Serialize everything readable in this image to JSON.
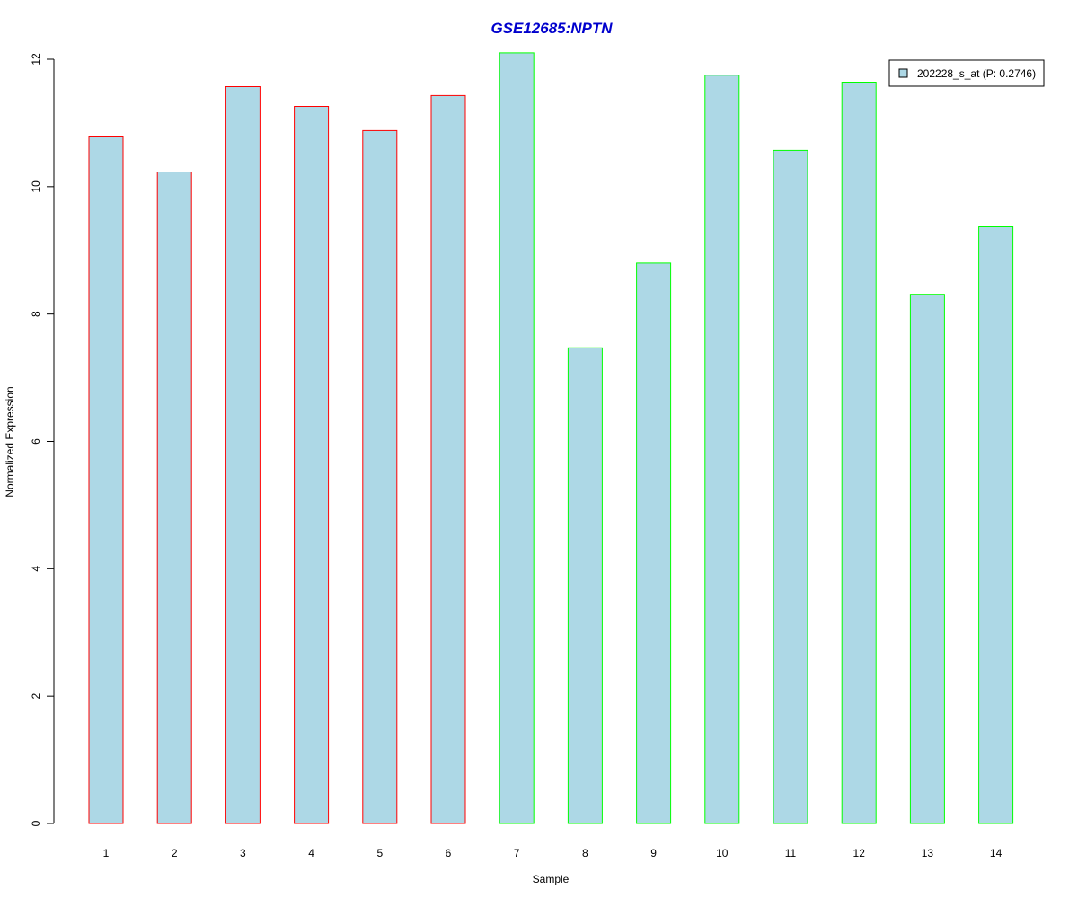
{
  "chart_data": {
    "type": "bar",
    "title": "GSE12685:NPTN",
    "xlabel": "Sample",
    "ylabel": "Normalized Expression",
    "categories": [
      "1",
      "2",
      "3",
      "4",
      "5",
      "6",
      "7",
      "8",
      "9",
      "10",
      "11",
      "12",
      "13",
      "14"
    ],
    "values": [
      10.78,
      10.23,
      11.57,
      11.26,
      10.88,
      11.43,
      12.1,
      7.47,
      8.8,
      11.75,
      10.57,
      11.64,
      8.31,
      9.37
    ],
    "groups": [
      "red",
      "red",
      "red",
      "red",
      "red",
      "red",
      "green",
      "green",
      "green",
      "green",
      "green",
      "green",
      "green",
      "green"
    ],
    "ylim": [
      0,
      12
    ],
    "yticks": [
      "0",
      "2",
      "4",
      "6",
      "8",
      "10",
      "12"
    ],
    "legend": {
      "entries": [
        "202228_s_at (P: 0.2746)"
      ],
      "placement": "top-right"
    },
    "grid": false,
    "colors": {
      "bar_fill": "#add8e6",
      "group_red": "#ff0000",
      "group_green": "#00ff00",
      "title": "#0000cd"
    }
  }
}
